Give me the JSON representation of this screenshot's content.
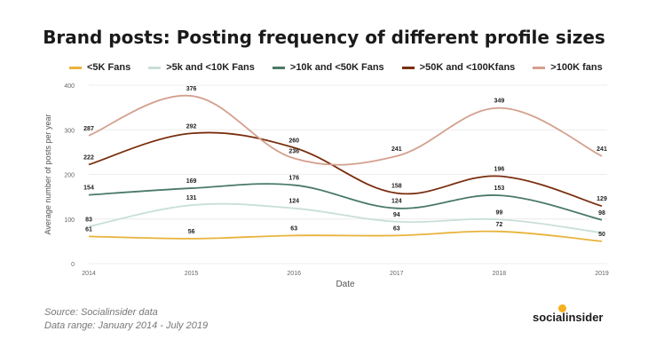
{
  "chart_data": {
    "type": "line",
    "title": "Brand posts: Posting frequency of different profile sizes",
    "xlabel": "Date",
    "ylabel": "Average number of posts per year",
    "categories": [
      "2014",
      "2015",
      "2016",
      "2017",
      "2018",
      "2019"
    ],
    "ylim": [
      0,
      400
    ],
    "yticks": [
      "0",
      "100",
      "200",
      "300",
      "400"
    ],
    "grid": true,
    "legend_position": "top",
    "series": [
      {
        "name": "<5K Fans",
        "color": "#e8b33c",
        "values": [
          61,
          56,
          63,
          63,
          72,
          50
        ]
      },
      {
        "name": ">5k and <10K Fans",
        "color": "#c9dfd9",
        "values": [
          83,
          131,
          124,
          94,
          99,
          69
        ]
      },
      {
        "name": ">10k and <50K Fans",
        "color": "#4a7a66",
        "values": [
          154,
          169,
          176,
          124,
          153,
          98
        ]
      },
      {
        "name": ">50K and <100Kfans",
        "color": "#7a2e0e",
        "values": [
          222,
          292,
          260,
          158,
          196,
          129
        ]
      },
      {
        "name": ">100K fans",
        "color": "#d4a08e",
        "values": [
          287,
          376,
          236,
          241,
          349,
          241
        ]
      }
    ],
    "labels": [
      {
        "series": 0,
        "index": 0,
        "text": "61"
      },
      {
        "series": 0,
        "index": 1,
        "text": "56"
      },
      {
        "series": 0,
        "index": 2,
        "text": "63"
      },
      {
        "series": 0,
        "index": 3,
        "text": "63"
      },
      {
        "series": 0,
        "index": 4,
        "text": "72"
      },
      {
        "series": 0,
        "index": 5,
        "text": "50"
      },
      {
        "series": 1,
        "index": 0,
        "text": "83"
      },
      {
        "series": 1,
        "index": 1,
        "text": "131"
      },
      {
        "series": 1,
        "index": 2,
        "text": "124"
      },
      {
        "series": 1,
        "index": 3,
        "text": "94"
      },
      {
        "series": 1,
        "index": 4,
        "text": "99"
      },
      {
        "series": 2,
        "index": 0,
        "text": "154"
      },
      {
        "series": 2,
        "index": 1,
        "text": "169"
      },
      {
        "series": 2,
        "index": 2,
        "text": "176"
      },
      {
        "series": 2,
        "index": 3,
        "text": "124"
      },
      {
        "series": 2,
        "index": 4,
        "text": "153"
      },
      {
        "series": 2,
        "index": 5,
        "text": "98"
      },
      {
        "series": 3,
        "index": 0,
        "text": "222"
      },
      {
        "series": 3,
        "index": 1,
        "text": "292"
      },
      {
        "series": 3,
        "index": 2,
        "text": "260"
      },
      {
        "series": 3,
        "index": 3,
        "text": "158"
      },
      {
        "series": 3,
        "index": 4,
        "text": "196"
      },
      {
        "series": 3,
        "index": 5,
        "text": "129"
      },
      {
        "series": 4,
        "index": 0,
        "text": "287"
      },
      {
        "series": 4,
        "index": 1,
        "text": "376"
      },
      {
        "series": 4,
        "index": 2,
        "text": "236"
      },
      {
        "series": 4,
        "index": 3,
        "text": "241"
      },
      {
        "series": 4,
        "index": 4,
        "text": "349"
      },
      {
        "series": 4,
        "index": 5,
        "text": "241"
      }
    ]
  },
  "footer": {
    "source": "Source: Socialinsider data",
    "range": "Data range: January 2014 - July 2019",
    "brand": "socialinsider"
  }
}
